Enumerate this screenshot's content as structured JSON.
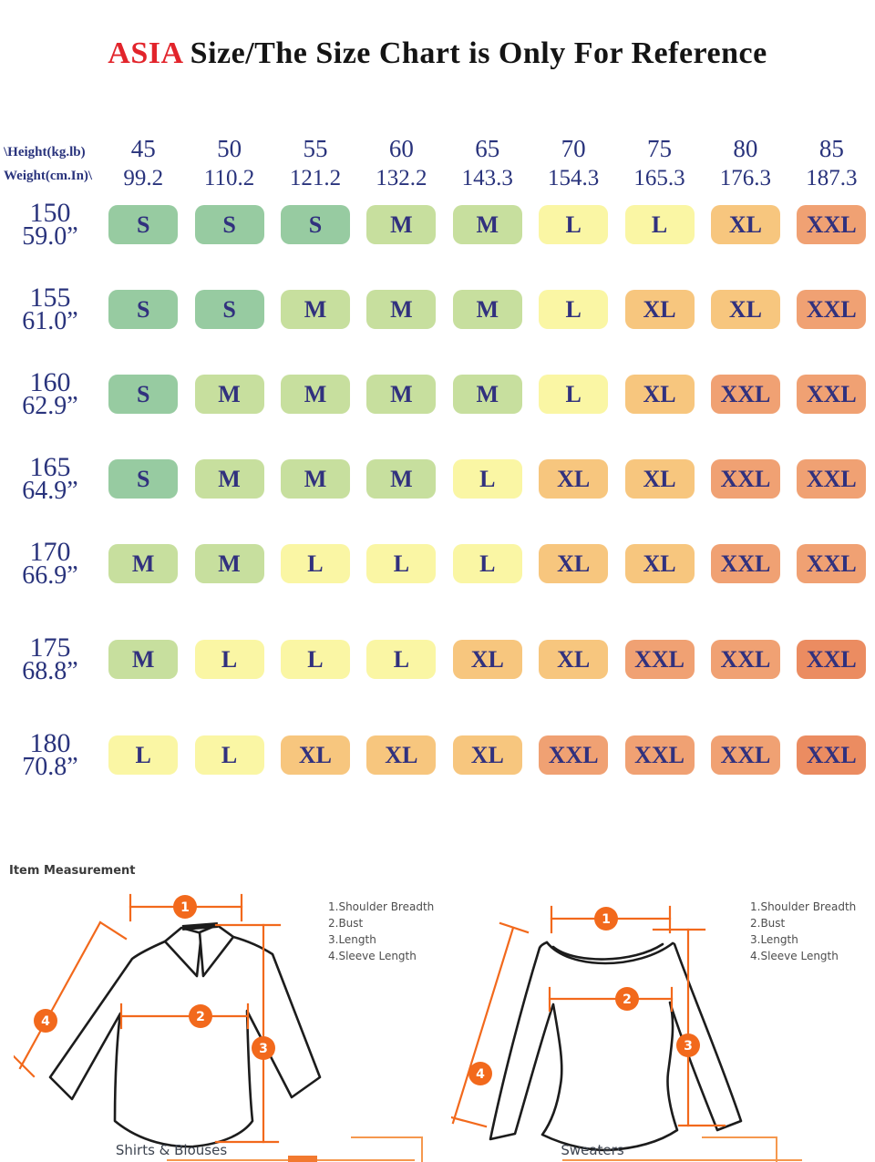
{
  "title": {
    "highlight": "ASIA",
    "rest": " Size/The Size Chart is Only For Reference"
  },
  "size_chart": {
    "corner_line1": "\\Height(kg.lb)",
    "corner_line2": "Weight(cm.In)\\",
    "columns": [
      {
        "kg": "45",
        "lb": "99.2"
      },
      {
        "kg": "50",
        "lb": "110.2"
      },
      {
        "kg": "55",
        "lb": "121.2"
      },
      {
        "kg": "60",
        "lb": "132.2"
      },
      {
        "kg": "65",
        "lb": "143.3"
      },
      {
        "kg": "70",
        "lb": "154.3"
      },
      {
        "kg": "75",
        "lb": "165.3"
      },
      {
        "kg": "80",
        "lb": "176.3"
      },
      {
        "kg": "85",
        "lb": "187.3"
      }
    ],
    "rows": [
      {
        "cm": "150",
        "inch": "59.0”",
        "sizes": [
          "S",
          "S",
          "S",
          "M",
          "M",
          "L",
          "L",
          "XL",
          "XXL"
        ]
      },
      {
        "cm": "155",
        "inch": "61.0”",
        "sizes": [
          "S",
          "S",
          "M",
          "M",
          "M",
          "L",
          "XL",
          "XL",
          "XXL"
        ]
      },
      {
        "cm": "160",
        "inch": "62.9”",
        "sizes": [
          "S",
          "M",
          "M",
          "M",
          "M",
          "L",
          "XL",
          "XXL",
          "XXL"
        ]
      },
      {
        "cm": "165",
        "inch": "64.9”",
        "sizes": [
          "S",
          "M",
          "M",
          "M",
          "L",
          "XL",
          "XL",
          "XXL",
          "XXL"
        ]
      },
      {
        "cm": "170",
        "inch": "66.9”",
        "sizes": [
          "M",
          "M",
          "L",
          "L",
          "L",
          "XL",
          "XL",
          "XXL",
          "XXL"
        ]
      },
      {
        "cm": "175",
        "inch": "68.8”",
        "sizes": [
          "M",
          "L",
          "L",
          "L",
          "XL",
          "XL",
          "XXL",
          "XXL",
          "XXL"
        ]
      },
      {
        "cm": "180",
        "inch": "70.8”",
        "sizes": [
          "L",
          "L",
          "XL",
          "XL",
          "XL",
          "XXL",
          "XXL",
          "XXL",
          "XXL"
        ]
      }
    ],
    "size_colors": {
      "S": "#97cba1",
      "M": "#c7df9e",
      "L": "#faf6a4",
      "XL": "#f7c67e",
      "XXL": "#f0a173",
      "XXL_DEEP": "#eb8c61"
    },
    "deep_cells": [
      [
        5,
        8
      ],
      [
        6,
        8
      ]
    ],
    "text_navy": "#29337c"
  },
  "measurement": {
    "heading": "Item Measurement",
    "legend": [
      "1.Shoulder Breadth",
      "2.Bust",
      "3.Length",
      "4.Sleeve Length"
    ],
    "points": [
      "1",
      "2",
      "3",
      "4"
    ],
    "figures": [
      {
        "caption": "Shirts & Blouses"
      },
      {
        "caption": "Sweaters"
      }
    ],
    "marker_color": "#f2691c"
  },
  "chart_data": {
    "type": "table",
    "title": "ASIA Size/The Size Chart is Only For Reference",
    "column_headers_weight_kg": [
      "45",
      "50",
      "55",
      "60",
      "65",
      "70",
      "75",
      "80",
      "85"
    ],
    "column_headers_weight_lb": [
      "99.2",
      "110.2",
      "121.2",
      "132.2",
      "143.3",
      "154.3",
      "165.3",
      "176.3",
      "187.3"
    ],
    "row_headers_height_cm": [
      "150",
      "155",
      "160",
      "165",
      "170",
      "175",
      "180"
    ],
    "row_headers_height_in": [
      "59.0",
      "61.0",
      "62.9",
      "64.9",
      "66.9",
      "68.8",
      "70.8"
    ],
    "cells": [
      [
        "S",
        "S",
        "S",
        "M",
        "M",
        "L",
        "L",
        "XL",
        "XXL"
      ],
      [
        "S",
        "S",
        "M",
        "M",
        "M",
        "L",
        "XL",
        "XL",
        "XXL"
      ],
      [
        "S",
        "M",
        "M",
        "M",
        "M",
        "L",
        "XL",
        "XXL",
        "XXL"
      ],
      [
        "S",
        "M",
        "M",
        "M",
        "L",
        "XL",
        "XL",
        "XXL",
        "XXL"
      ],
      [
        "M",
        "M",
        "L",
        "L",
        "L",
        "XL",
        "XL",
        "XXL",
        "XXL"
      ],
      [
        "M",
        "L",
        "L",
        "L",
        "XL",
        "XL",
        "XXL",
        "XXL",
        "XXL"
      ],
      [
        "L",
        "L",
        "XL",
        "XL",
        "XL",
        "XXL",
        "XXL",
        "XXL",
        "XXL"
      ]
    ]
  }
}
